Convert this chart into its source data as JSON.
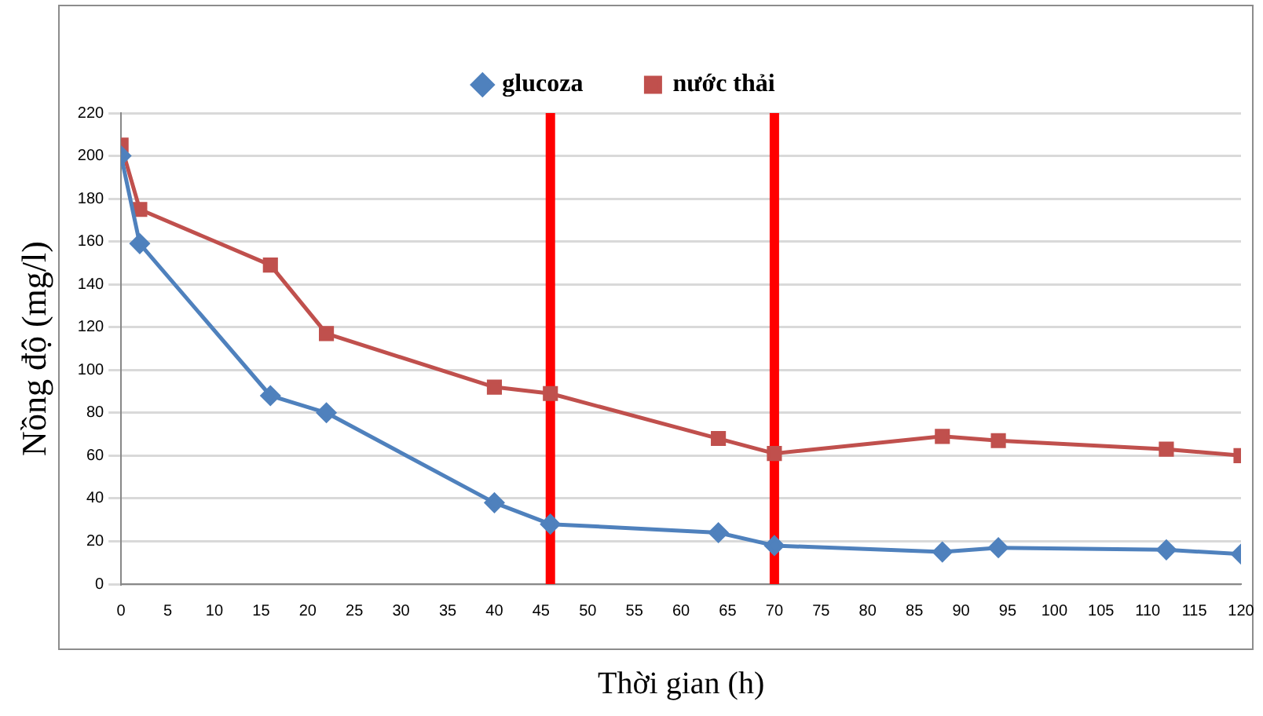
{
  "chart_data": {
    "type": "line",
    "xlabel": "Thời gian (h)",
    "ylabel": "Nồng độ (mg/l)",
    "x": [
      0,
      2,
      16,
      22,
      40,
      46,
      64,
      70,
      88,
      94,
      112,
      120
    ],
    "series": [
      {
        "name": "glucoza",
        "color": "#4f81bd",
        "marker": "diamond",
        "values": [
          200,
          159,
          88,
          80,
          38,
          28,
          24,
          18,
          15,
          17,
          16,
          14
        ]
      },
      {
        "name": "nước thải",
        "color": "#c0504d",
        "marker": "square",
        "values": [
          205,
          175,
          149,
          117,
          92,
          89,
          68,
          61,
          69,
          67,
          63,
          60
        ]
      }
    ],
    "xlim": [
      0,
      120
    ],
    "xticks": [
      0,
      5,
      10,
      15,
      20,
      25,
      30,
      35,
      40,
      45,
      50,
      55,
      60,
      65,
      70,
      75,
      80,
      85,
      90,
      95,
      100,
      105,
      110,
      115,
      120
    ],
    "ylim": [
      0,
      220
    ],
    "yticks": [
      0,
      20,
      40,
      60,
      80,
      100,
      120,
      140,
      160,
      180,
      200,
      220
    ],
    "grid": "y",
    "legend": "top",
    "ref_lines": [
      {
        "axis": "x",
        "value": 46,
        "color": "#ff0000"
      },
      {
        "axis": "x",
        "value": 70,
        "color": "#ff0000"
      }
    ]
  }
}
